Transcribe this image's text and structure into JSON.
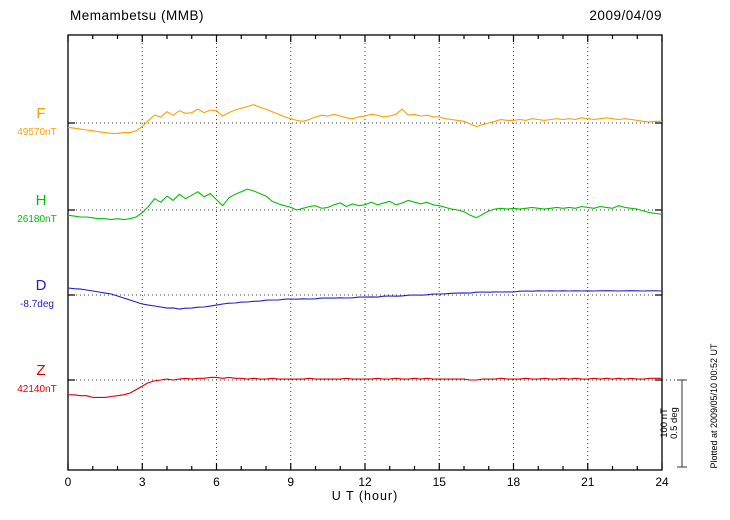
{
  "header": {
    "title": "Memambetsu (MMB)",
    "date": "2009/04/09"
  },
  "axis": {
    "xlabel": "U T (hour)",
    "x_range": [
      0,
      24
    ],
    "x_minor_step": 1
  },
  "scalebar": {
    "line1": "100 nT",
    "line2": "0.5 deg"
  },
  "plot_note": "Plotted at 2009/05/10 00:52 UT",
  "chart_data": {
    "type": "line",
    "title": "Memambetsu (MMB)",
    "subtitle": "2009/04/09",
    "xlabel": "U T (hour)",
    "x_ticks": [
      0,
      3,
      6,
      9,
      12,
      15,
      18,
      21,
      24
    ],
    "x_range": [
      0,
      24
    ],
    "x_start": 0,
    "x_step": 0.25,
    "grid": "dotted vertical at major ticks, dotted horizontal baselines",
    "legend_position": "left margin",
    "scale_reference": {
      "nT": 100,
      "deg": 0.5
    },
    "series": [
      {
        "name": "F",
        "label": "49570nT",
        "baseline": 49570,
        "units": "nT",
        "color": "#FFA000",
        "values": [
          49565,
          49564,
          49563,
          49562,
          49561,
          49560,
          49559,
          49558,
          49558,
          49559,
          49559,
          49561,
          49566,
          49573,
          49579,
          49577,
          49583,
          49579,
          49584,
          49581,
          49582,
          49586,
          49582,
          49585,
          49584,
          49578,
          49582,
          49585,
          49587,
          49589,
          49591,
          49588,
          49586,
          49583,
          49580,
          49577,
          49575,
          49573,
          49572,
          49574,
          49577,
          49579,
          49578,
          49580,
          49578,
          49576,
          49575,
          49577,
          49578,
          49580,
          49579,
          49577,
          49578,
          49580,
          49586,
          49579,
          49580,
          49578,
          49579,
          49577,
          49577,
          49575,
          49574,
          49573,
          49572,
          49569,
          49566,
          49568,
          49570,
          49572,
          49574,
          49573,
          49573,
          49574,
          49573,
          49575,
          49574,
          49573,
          49574,
          49575,
          49574,
          49575,
          49574,
          49576,
          49575,
          49574,
          49575,
          49576,
          49575,
          49574,
          49575,
          49574,
          49573,
          49572,
          49571,
          49572,
          49572
        ]
      },
      {
        "name": "H",
        "label": "26180nT",
        "baseline": 26180,
        "units": "nT",
        "color": "#00C000",
        "values": [
          26174,
          26173,
          26172,
          26172,
          26171,
          26170,
          26170,
          26169,
          26170,
          26169,
          26170,
          26172,
          26177,
          26184,
          26193,
          26189,
          26196,
          26191,
          26198,
          26193,
          26197,
          26201,
          26195,
          26199,
          26192,
          26185,
          26194,
          26198,
          26201,
          26204,
          26202,
          26199,
          26196,
          26190,
          26187,
          26185,
          26183,
          26180,
          26182,
          26184,
          26185,
          26182,
          26183,
          26186,
          26188,
          26184,
          26187,
          26185,
          26186,
          26189,
          26186,
          26188,
          26190,
          26186,
          26188,
          26191,
          26189,
          26187,
          26189,
          26186,
          26185,
          26183,
          26181,
          26180,
          26178,
          26174,
          26171,
          26175,
          26179,
          26181,
          26182,
          26181,
          26182,
          26181,
          26182,
          26183,
          26182,
          26181,
          26182,
          26183,
          26182,
          26183,
          26182,
          26184,
          26183,
          26182,
          26184,
          26183,
          26182,
          26185,
          26183,
          26182,
          26181,
          26179,
          26177,
          26176,
          26175
        ]
      },
      {
        "name": "D",
        "label": "-8.7deg",
        "baseline": -8.7,
        "units": "deg",
        "color": "#2020CC",
        "values": [
          -8.66,
          -8.664,
          -8.666,
          -8.671,
          -8.677,
          -8.683,
          -8.689,
          -8.694,
          -8.706,
          -8.717,
          -8.729,
          -8.74,
          -8.752,
          -8.758,
          -8.763,
          -8.769,
          -8.775,
          -8.774,
          -8.781,
          -8.776,
          -8.775,
          -8.77,
          -8.769,
          -8.764,
          -8.758,
          -8.752,
          -8.747,
          -8.746,
          -8.741,
          -8.74,
          -8.736,
          -8.735,
          -8.73,
          -8.729,
          -8.729,
          -8.724,
          -8.723,
          -8.724,
          -8.722,
          -8.723,
          -8.722,
          -8.718,
          -8.717,
          -8.718,
          -8.716,
          -8.717,
          -8.716,
          -8.712,
          -8.712,
          -8.711,
          -8.712,
          -8.707,
          -8.706,
          -8.707,
          -8.705,
          -8.701,
          -8.7,
          -8.701,
          -8.699,
          -8.695,
          -8.694,
          -8.693,
          -8.69,
          -8.689,
          -8.688,
          -8.689,
          -8.684,
          -8.683,
          -8.684,
          -8.682,
          -8.683,
          -8.682,
          -8.683,
          -8.678,
          -8.677,
          -8.678,
          -8.676,
          -8.677,
          -8.676,
          -8.677,
          -8.676,
          -8.677,
          -8.676,
          -8.677,
          -8.676,
          -8.677,
          -8.676,
          -8.675,
          -8.676,
          -8.677,
          -8.676,
          -8.675,
          -8.676,
          -8.677,
          -8.676,
          -8.676,
          -8.677
        ]
      },
      {
        "name": "Z",
        "label": "42140nT",
        "baseline": 42140,
        "units": "nT",
        "color": "#E00000",
        "values": [
          42123,
          42123,
          42122,
          42122,
          42120,
          42120,
          42120,
          42121,
          42122,
          42123,
          42125,
          42129,
          42133,
          42137,
          42139,
          42140,
          42141,
          42140,
          42141,
          42142,
          42141,
          42142,
          42142,
          42143,
          42143,
          42142,
          42143,
          42142,
          42142,
          42141,
          42142,
          42141,
          42141,
          42142,
          42141,
          42141,
          42141,
          42141,
          42141,
          42142,
          42141,
          42141,
          42141,
          42141,
          42141,
          42142,
          42141,
          42141,
          42141,
          42141,
          42142,
          42141,
          42141,
          42142,
          42141,
          42141,
          42142,
          42141,
          42142,
          42141,
          42141,
          42141,
          42141,
          42141,
          42141,
          42140,
          42140,
          42141,
          42141,
          42141,
          42142,
          42141,
          42141,
          42141,
          42142,
          42141,
          42141,
          42142,
          42141,
          42141,
          42142,
          42141,
          42142,
          42141,
          42141,
          42142,
          42141,
          42142,
          42141,
          42142,
          42141,
          42142,
          42141,
          42141,
          42142,
          42142,
          42142
        ]
      }
    ]
  }
}
